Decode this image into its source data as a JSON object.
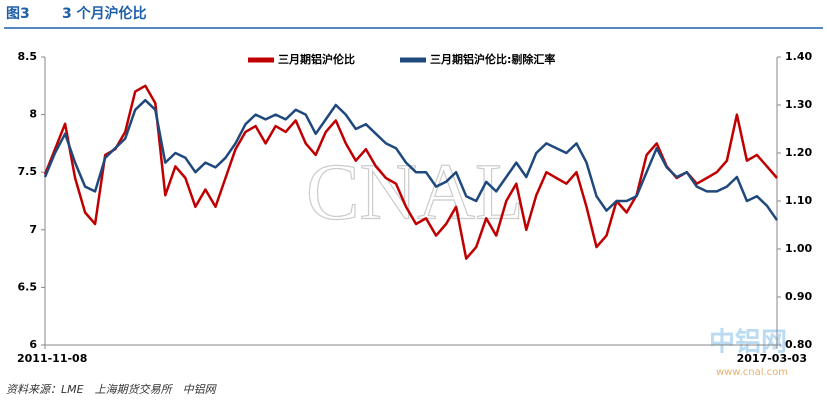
{
  "chart_data": {
    "type": "line",
    "figure_label": "图3",
    "title": "3 个月沪伦比",
    "source": "资料来源：LME　上海期货交易所　中铝网",
    "watermark": "CNAL",
    "logo": "中铝网",
    "logo_url": "www.cnal.com",
    "legend": "top",
    "categories": [
      "2011-11-08",
      null,
      null,
      null,
      null,
      null,
      null,
      null,
      null,
      null,
      null,
      null,
      null,
      null,
      null,
      null,
      null,
      null,
      null,
      null,
      null,
      null,
      null,
      null,
      null,
      null,
      null,
      null,
      null,
      null,
      null,
      null,
      null,
      null,
      null,
      null,
      null,
      null,
      null,
      null,
      null,
      null,
      null,
      null,
      null,
      null,
      null,
      null,
      null,
      null,
      null,
      null,
      null,
      null,
      null,
      null,
      null,
      null,
      null,
      null,
      null,
      null,
      null,
      null,
      null,
      null,
      null,
      null,
      null,
      null,
      null,
      null,
      null,
      "2017-03-03"
    ],
    "ylim": [
      6,
      8.5
    ],
    "yticks": [
      6,
      6.5,
      7,
      7.5,
      8,
      8.5
    ],
    "y2lim": [
      0.8,
      1.4
    ],
    "y2ticks": [
      {
        "value": 0.8,
        "label": "0.80"
      },
      {
        "value": 0.9,
        "label": "0.90"
      },
      {
        "value": 1.0,
        "label": "1.00"
      },
      {
        "value": 1.1,
        "label": "1.10"
      },
      {
        "value": 1.2,
        "label": "1.20"
      },
      {
        "value": 1.3,
        "label": "1.30"
      },
      {
        "value": 1.4,
        "label": "1.40"
      }
    ],
    "series": [
      {
        "name": "三月期铝沪伦比",
        "color": "#c00000",
        "values": [
          7.48,
          7.7,
          7.92,
          7.45,
          7.15,
          7.05,
          7.65,
          7.7,
          7.85,
          8.2,
          8.25,
          8.1,
          7.3,
          7.55,
          7.45,
          7.2,
          7.35,
          7.2,
          7.45,
          7.7,
          7.85,
          7.9,
          7.75,
          7.9,
          7.85,
          7.95,
          7.75,
          7.65,
          7.85,
          7.95,
          7.75,
          7.6,
          7.7,
          7.55,
          7.45,
          7.4,
          7.2,
          7.05,
          7.1,
          6.95,
          7.05,
          7.2,
          6.75,
          6.85,
          7.1,
          6.95,
          7.25,
          7.4,
          7.0,
          7.3,
          7.5,
          7.45,
          7.4,
          7.5,
          7.2,
          6.85,
          6.95,
          7.25,
          7.15,
          7.3,
          7.65,
          7.75,
          7.55,
          7.45,
          7.5,
          7.4,
          7.45,
          7.5,
          7.6,
          8.0,
          7.6,
          7.65,
          7.55,
          7.45
        ]
      },
      {
        "name": "三月期铝沪伦比:剔除汇率",
        "color": "#1f497d",
        "axis": "y2",
        "values": [
          1.15,
          1.2,
          1.24,
          1.18,
          1.13,
          1.12,
          1.19,
          1.21,
          1.23,
          1.29,
          1.31,
          1.29,
          1.18,
          1.2,
          1.19,
          1.16,
          1.18,
          1.17,
          1.19,
          1.22,
          1.26,
          1.28,
          1.27,
          1.28,
          1.27,
          1.29,
          1.28,
          1.24,
          1.27,
          1.3,
          1.28,
          1.25,
          1.26,
          1.24,
          1.22,
          1.21,
          1.18,
          1.16,
          1.16,
          1.13,
          1.14,
          1.16,
          1.11,
          1.1,
          1.14,
          1.12,
          1.15,
          1.18,
          1.15,
          1.2,
          1.22,
          1.21,
          1.2,
          1.22,
          1.18,
          1.11,
          1.08,
          1.1,
          1.1,
          1.11,
          1.16,
          1.21,
          1.17,
          1.15,
          1.16,
          1.13,
          1.12,
          1.12,
          1.13,
          1.15,
          1.1,
          1.11,
          1.09,
          1.06
        ]
      }
    ]
  }
}
